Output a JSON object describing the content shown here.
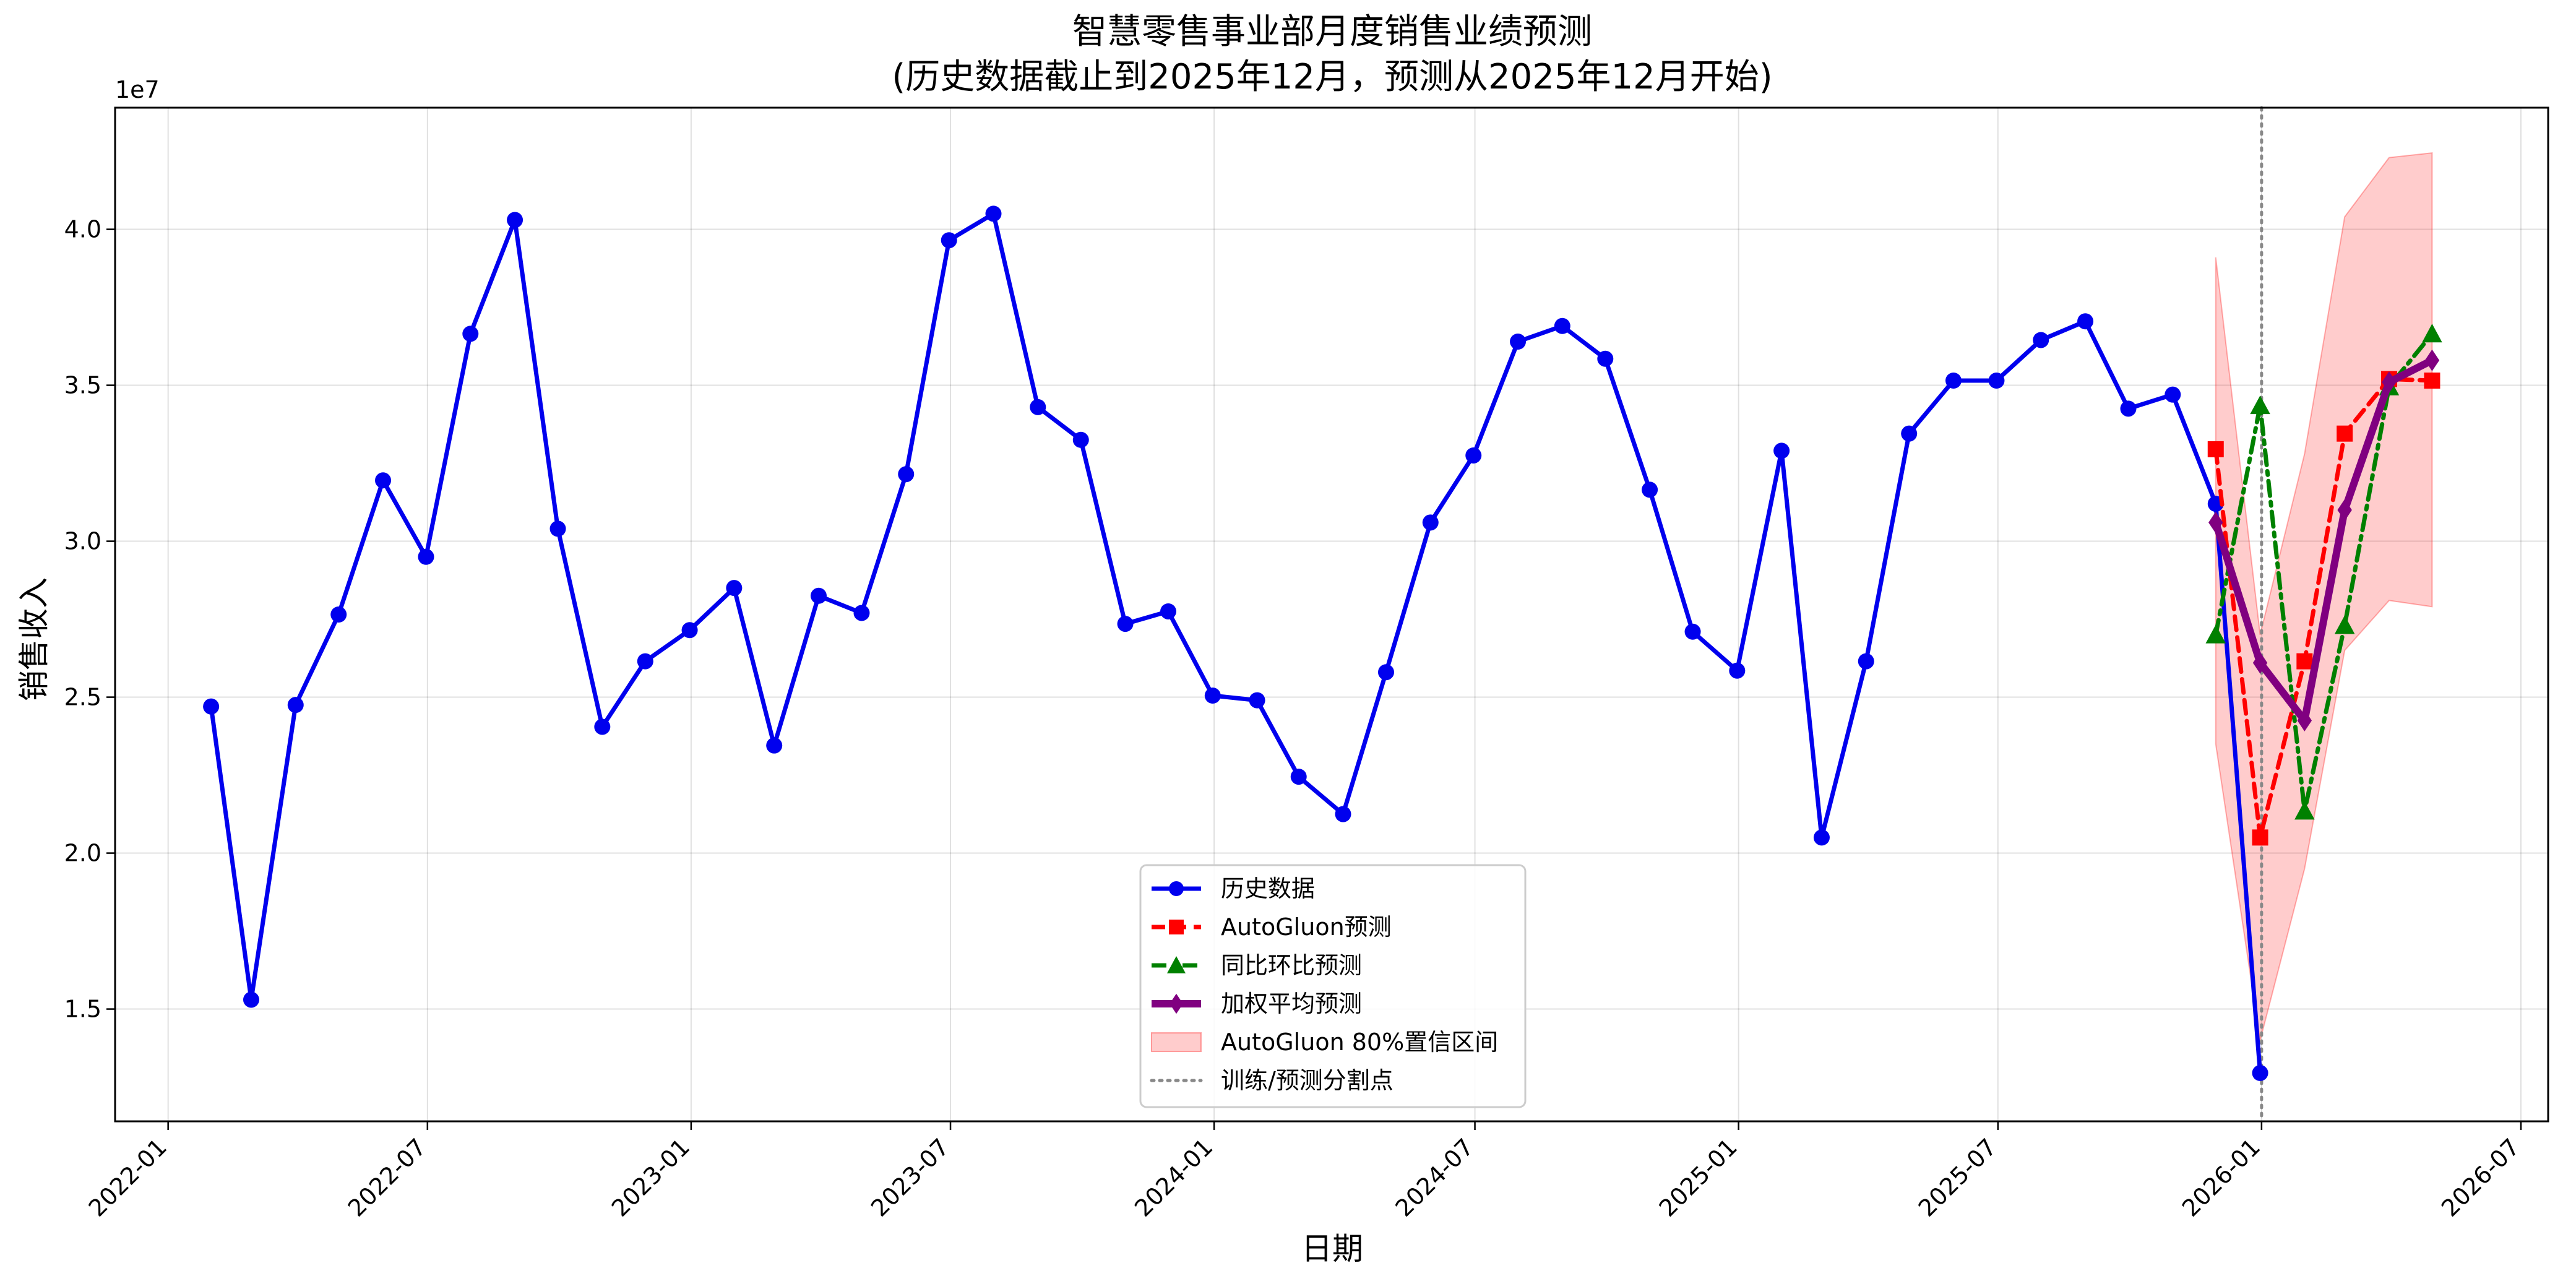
{
  "chart_data": {
    "type": "line",
    "title_lines": [
      "智慧零售事业部月度销售业绩预测",
      "(历史数据截止到2025年12月，预测从2025年12月开始)"
    ],
    "xlabel": "日期",
    "ylabel": "销售收入",
    "y_offset_label": "1e7",
    "x_range": [
      "2021-11-25",
      "2026-07-20"
    ],
    "y_range": [
      11400000,
      43900000
    ],
    "x_ticks": [
      {
        "date": "2022-01-01",
        "label": "2022-01"
      },
      {
        "date": "2022-07-01",
        "label": "2022-07"
      },
      {
        "date": "2023-01-01",
        "label": "2023-01"
      },
      {
        "date": "2023-07-01",
        "label": "2023-07"
      },
      {
        "date": "2024-01-01",
        "label": "2024-01"
      },
      {
        "date": "2024-07-01",
        "label": "2024-07"
      },
      {
        "date": "2025-01-01",
        "label": "2025-01"
      },
      {
        "date": "2025-07-01",
        "label": "2025-07"
      },
      {
        "date": "2026-01-01",
        "label": "2026-01"
      },
      {
        "date": "2026-07-01",
        "label": "2026-07"
      }
    ],
    "y_ticks": [
      {
        "value": 15000000,
        "label": "1.5"
      },
      {
        "value": 20000000,
        "label": "2.0"
      },
      {
        "value": 25000000,
        "label": "2.5"
      },
      {
        "value": 30000000,
        "label": "3.0"
      },
      {
        "value": 35000000,
        "label": "3.5"
      },
      {
        "value": 40000000,
        "label": "4.0"
      }
    ],
    "grid": true,
    "legend_position": "bottom-center",
    "split_date": "2026-01-01",
    "series": [
      {
        "name": "历史数据",
        "color": "#0000ee",
        "marker": "circle",
        "line": "solid",
        "points": [
          [
            "2022-01-31",
            24700000
          ],
          [
            "2022-02-28",
            15300000
          ],
          [
            "2022-03-31",
            24750000
          ],
          [
            "2022-04-30",
            27650000
          ],
          [
            "2022-05-31",
            31950000
          ],
          [
            "2022-06-30",
            29500000
          ],
          [
            "2022-07-31",
            36650000
          ],
          [
            "2022-08-31",
            40300000
          ],
          [
            "2022-09-30",
            30400000
          ],
          [
            "2022-10-31",
            24050000
          ],
          [
            "2022-11-30",
            26150000
          ],
          [
            "2022-12-31",
            27150000
          ],
          [
            "2023-01-31",
            28500000
          ],
          [
            "2023-02-28",
            23450000
          ],
          [
            "2023-03-31",
            28250000
          ],
          [
            "2023-04-30",
            27700000
          ],
          [
            "2023-05-31",
            32150000
          ],
          [
            "2023-06-30",
            39650000
          ],
          [
            "2023-07-31",
            40500000
          ],
          [
            "2023-08-31",
            34300000
          ],
          [
            "2023-09-30",
            33250000
          ],
          [
            "2023-10-31",
            27350000
          ],
          [
            "2023-11-30",
            27750000
          ],
          [
            "2023-12-31",
            25050000
          ],
          [
            "2024-01-31",
            24900000
          ],
          [
            "2024-02-29",
            22450000
          ],
          [
            "2024-03-31",
            21250000
          ],
          [
            "2024-04-30",
            25800000
          ],
          [
            "2024-05-31",
            30600000
          ],
          [
            "2024-06-30",
            32750000
          ],
          [
            "2024-07-31",
            36400000
          ],
          [
            "2024-08-31",
            36900000
          ],
          [
            "2024-09-30",
            35850000
          ],
          [
            "2024-10-31",
            31650000
          ],
          [
            "2024-11-30",
            27100000
          ],
          [
            "2024-12-31",
            25850000
          ],
          [
            "2025-01-31",
            32900000
          ],
          [
            "2025-02-28",
            20500000
          ],
          [
            "2025-03-31",
            26150000
          ],
          [
            "2025-04-30",
            33450000
          ],
          [
            "2025-05-31",
            35150000
          ],
          [
            "2025-06-30",
            35150000
          ],
          [
            "2025-07-31",
            36450000
          ],
          [
            "2025-08-31",
            37050000
          ],
          [
            "2025-09-30",
            34250000
          ],
          [
            "2025-10-31",
            34700000
          ],
          [
            "2025-11-30",
            31200000
          ],
          [
            "2025-12-31",
            12950000
          ]
        ]
      },
      {
        "name": "AutoGluon预测",
        "color": "#ff0000",
        "marker": "square",
        "line": "dashed",
        "points": [
          [
            "2025-11-30",
            32950000
          ],
          [
            "2025-12-31",
            20500000
          ],
          [
            "2026-01-31",
            26150000
          ],
          [
            "2026-02-28",
            33450000
          ],
          [
            "2026-03-31",
            35200000
          ],
          [
            "2026-04-30",
            35150000
          ]
        ]
      },
      {
        "name": "同比环比预测",
        "color": "#008000",
        "marker": "triangle",
        "line": "dashdot",
        "points": [
          [
            "2025-11-30",
            27000000
          ],
          [
            "2025-12-31",
            34350000
          ],
          [
            "2026-01-31",
            21350000
          ],
          [
            "2026-02-28",
            27300000
          ],
          [
            "2026-03-31",
            34950000
          ],
          [
            "2026-04-30",
            36650000
          ]
        ]
      },
      {
        "name": "加权平均预测",
        "color": "#800080",
        "marker": "diamond",
        "line": "solid-thick",
        "points": [
          [
            "2025-11-30",
            30600000
          ],
          [
            "2025-12-31",
            26100000
          ],
          [
            "2026-01-31",
            24250000
          ],
          [
            "2026-02-28",
            31000000
          ],
          [
            "2026-03-31",
            35100000
          ],
          [
            "2026-04-30",
            35800000
          ]
        ]
      }
    ],
    "band": {
      "name": "AutoGluon 80%置信区间",
      "color": "#ff0000",
      "opacity": 0.2,
      "points": [
        [
          "2025-11-30",
          23500000,
          39100000
        ],
        [
          "2025-12-31",
          14000000,
          27000000
        ],
        [
          "2026-01-31",
          19500000,
          32800000
        ],
        [
          "2026-02-28",
          26500000,
          40400000
        ],
        [
          "2026-03-31",
          28100000,
          42300000
        ],
        [
          "2026-04-30",
          27900000,
          42450000
        ]
      ]
    },
    "split_line_label": "训练/预测分割点"
  }
}
